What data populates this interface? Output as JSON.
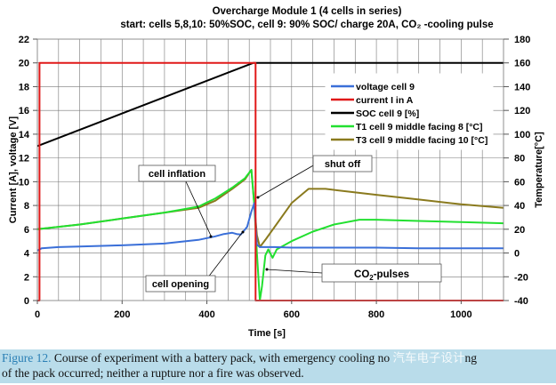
{
  "chart_data": {
    "type": "line",
    "title": "Overcharge Module 1 (4 cells in series)",
    "subtitle": "start:  cells 5,8,10: 50%SOC, cell 9: 90% SOC/ charge 20A, CO₂ -cooling pulse",
    "xlabel": "Time [s]",
    "ylabel_left": "Current [A], voltage [V]",
    "ylabel_right": "Temperature[°C]",
    "xlim": [
      0,
      1100
    ],
    "ylim_left": [
      0,
      22
    ],
    "ylim_right": [
      -40,
      180
    ],
    "x_ticks": [
      "0",
      "200",
      "400",
      "600",
      "800",
      "1000"
    ],
    "y_left_ticks": [
      "0",
      "2",
      "4",
      "6",
      "8",
      "10",
      "12",
      "14",
      "16",
      "18",
      "20",
      "22"
    ],
    "y_right_ticks": [
      "-40",
      "-20",
      "0",
      "20",
      "40",
      "60",
      "80",
      "100",
      "120",
      "140",
      "160",
      "180"
    ],
    "grid": true,
    "legend_position": "top-right",
    "series": [
      {
        "name": "voltage cell 9",
        "axis": "left",
        "color": "#3a6fd8",
        "x": [
          0,
          10,
          50,
          100,
          200,
          300,
          380,
          420,
          440,
          460,
          470,
          480,
          495,
          505,
          512,
          518,
          525,
          560,
          600,
          700,
          800,
          900,
          1000,
          1100
        ],
        "y": [
          4.2,
          4.4,
          4.5,
          4.55,
          4.65,
          4.8,
          5.1,
          5.4,
          5.6,
          5.7,
          5.6,
          5.55,
          6.2,
          7.5,
          8.2,
          4.7,
          4.5,
          4.5,
          4.45,
          4.45,
          4.45,
          4.4,
          4.4,
          4.4
        ]
      },
      {
        "name": "current I in A",
        "axis": "left",
        "color": "#e01818",
        "x": [
          0,
          5,
          5,
          515,
          515,
          1100
        ],
        "y": [
          0,
          0,
          20,
          20,
          0,
          0
        ]
      },
      {
        "name": "SOC cell 9 [%]",
        "axis": "right",
        "color": "#000000",
        "x": [
          0,
          510,
          1100
        ],
        "y": [
          90,
          160,
          160
        ]
      },
      {
        "name": "T1 cell 9 middle facing 8 [°C]",
        "axis": "right",
        "color": "#22e030",
        "x": [
          0,
          100,
          200,
          300,
          380,
          420,
          460,
          490,
          505,
          512,
          518,
          525,
          530,
          538,
          545,
          555,
          565,
          600,
          650,
          700,
          760,
          800,
          900,
          1000,
          1100
        ],
        "y": [
          20,
          24,
          29,
          34,
          39,
          46,
          55,
          63,
          70,
          40,
          0,
          -40,
          -28,
          -2,
          3,
          -4,
          3,
          10,
          18,
          24,
          28,
          28,
          27,
          26,
          25
        ]
      },
      {
        "name": "T3 cell 9 middle facing 10 [°C]",
        "axis": "right",
        "color": "#8a7a1e",
        "x": [
          0,
          100,
          200,
          300,
          380,
          420,
          460,
          490,
          505,
          512,
          518,
          525,
          540,
          560,
          600,
          640,
          680,
          750,
          800,
          900,
          1000,
          1100
        ],
        "y": [
          20,
          24,
          29,
          34,
          38,
          44,
          54,
          62,
          70,
          40,
          15,
          5,
          12,
          22,
          42,
          54,
          54,
          51,
          49,
          45,
          41,
          38
        ]
      }
    ],
    "annotations": [
      {
        "text": "cell inflation",
        "x": 400,
        "y": 5.4
      },
      {
        "text": "cell opening",
        "x": 470,
        "y": 5.6
      },
      {
        "text": "shut off",
        "x": 512,
        "y": 7.0
      },
      {
        "text_main": "CO",
        "text_sub": "2",
        "text_tail": "-pulses",
        "x": 530,
        "y": 2.5
      }
    ]
  },
  "caption": {
    "label": "Figure 12.",
    "text": " Course of experiment with a battery pack, with emergency cooling no ",
    "watermark": "汽车电子设计",
    "text_end": "ng",
    "line2": "of the pack occurred; neither a rupture nor a fire was observed."
  }
}
